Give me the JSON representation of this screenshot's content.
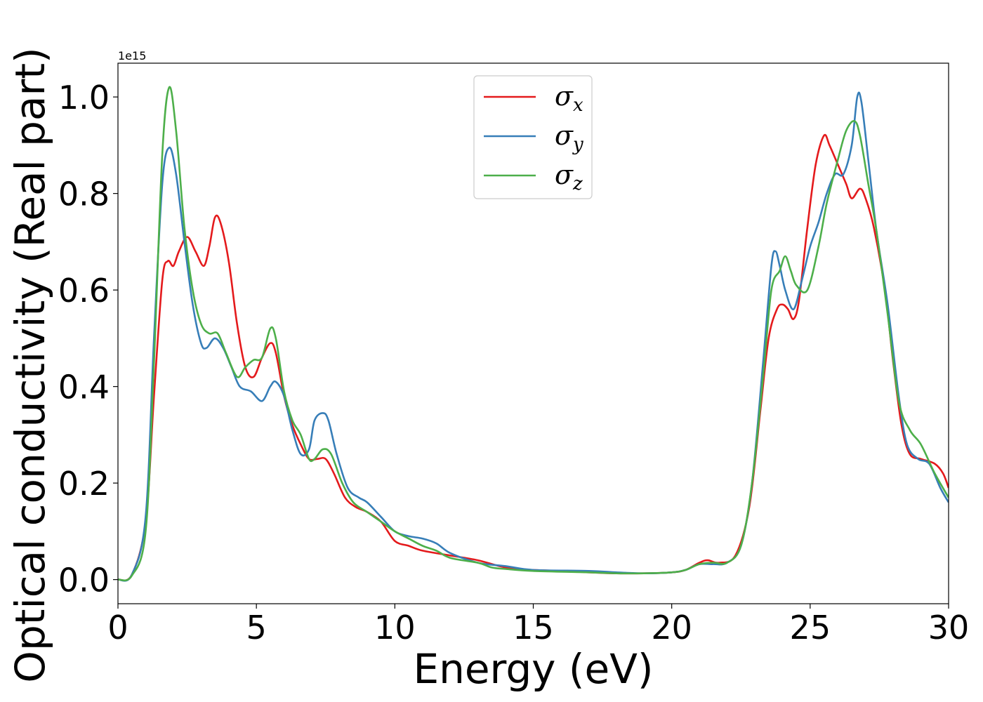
{
  "chart_data": {
    "type": "line",
    "xlabel": "Energy (eV)",
    "ylabel": "Optical conductivity (Real part)",
    "y_offset_label": "1e15",
    "xlim": [
      0,
      30
    ],
    "ylim": [
      -0.05,
      1.07
    ],
    "xticks": [
      0,
      5,
      10,
      15,
      20,
      25,
      30
    ],
    "xtick_labels": [
      "0",
      "5",
      "10",
      "15",
      "20",
      "25",
      "30"
    ],
    "yticks": [
      0.0,
      0.2,
      0.4,
      0.6,
      0.8,
      1.0
    ],
    "ytick_labels": [
      "0.0",
      "0.2",
      "0.4",
      "0.6",
      "0.8",
      "1.0"
    ],
    "grid": false,
    "legend_position": "top-center",
    "series": [
      {
        "name": "σx",
        "symbol": "σ",
        "subscript": "x",
        "color": "#e41a1c",
        "points": [
          [
            0,
            0
          ],
          [
            0.5,
            0.01
          ],
          [
            1.0,
            0.12
          ],
          [
            1.3,
            0.38
          ],
          [
            1.6,
            0.62
          ],
          [
            1.8,
            0.66
          ],
          [
            2.0,
            0.65
          ],
          [
            2.2,
            0.68
          ],
          [
            2.5,
            0.71
          ],
          [
            2.8,
            0.68
          ],
          [
            3.1,
            0.65
          ],
          [
            3.3,
            0.69
          ],
          [
            3.5,
            0.75
          ],
          [
            3.7,
            0.74
          ],
          [
            4.0,
            0.66
          ],
          [
            4.3,
            0.53
          ],
          [
            4.6,
            0.44
          ],
          [
            4.9,
            0.42
          ],
          [
            5.2,
            0.46
          ],
          [
            5.5,
            0.49
          ],
          [
            5.7,
            0.47
          ],
          [
            6.0,
            0.38
          ],
          [
            6.3,
            0.32
          ],
          [
            6.6,
            0.28
          ],
          [
            6.9,
            0.25
          ],
          [
            7.2,
            0.25
          ],
          [
            7.5,
            0.25
          ],
          [
            7.8,
            0.22
          ],
          [
            8.2,
            0.17
          ],
          [
            8.6,
            0.15
          ],
          [
            9.0,
            0.14
          ],
          [
            9.5,
            0.12
          ],
          [
            10.0,
            0.08
          ],
          [
            10.5,
            0.07
          ],
          [
            11.0,
            0.06
          ],
          [
            12.0,
            0.05
          ],
          [
            13.0,
            0.04
          ],
          [
            14.0,
            0.025
          ],
          [
            15.0,
            0.02
          ],
          [
            16.0,
            0.018
          ],
          [
            17.0,
            0.015
          ],
          [
            18.0,
            0.013
          ],
          [
            19.0,
            0.013
          ],
          [
            20.0,
            0.015
          ],
          [
            20.5,
            0.02
          ],
          [
            21.0,
            0.035
          ],
          [
            21.3,
            0.04
          ],
          [
            21.7,
            0.035
          ],
          [
            22.3,
            0.05
          ],
          [
            22.8,
            0.15
          ],
          [
            23.2,
            0.35
          ],
          [
            23.5,
            0.5
          ],
          [
            23.8,
            0.56
          ],
          [
            24.0,
            0.57
          ],
          [
            24.2,
            0.56
          ],
          [
            24.4,
            0.54
          ],
          [
            24.6,
            0.58
          ],
          [
            24.9,
            0.73
          ],
          [
            25.2,
            0.86
          ],
          [
            25.5,
            0.92
          ],
          [
            25.7,
            0.9
          ],
          [
            26.0,
            0.86
          ],
          [
            26.3,
            0.82
          ],
          [
            26.5,
            0.79
          ],
          [
            26.8,
            0.81
          ],
          [
            27.0,
            0.79
          ],
          [
            27.3,
            0.73
          ],
          [
            27.7,
            0.6
          ],
          [
            28.0,
            0.45
          ],
          [
            28.3,
            0.32
          ],
          [
            28.6,
            0.26
          ],
          [
            29.0,
            0.25
          ],
          [
            29.5,
            0.24
          ],
          [
            29.8,
            0.22
          ],
          [
            30.0,
            0.19
          ]
        ]
      },
      {
        "name": "σy",
        "symbol": "σ",
        "subscript": "y",
        "color": "#377eb8",
        "points": [
          [
            0,
            0
          ],
          [
            0.5,
            0.01
          ],
          [
            1.0,
            0.13
          ],
          [
            1.3,
            0.5
          ],
          [
            1.6,
            0.82
          ],
          [
            1.85,
            0.895
          ],
          [
            2.1,
            0.84
          ],
          [
            2.4,
            0.7
          ],
          [
            2.7,
            0.57
          ],
          [
            3.0,
            0.49
          ],
          [
            3.2,
            0.48
          ],
          [
            3.5,
            0.5
          ],
          [
            3.8,
            0.48
          ],
          [
            4.1,
            0.44
          ],
          [
            4.4,
            0.4
          ],
          [
            4.8,
            0.39
          ],
          [
            5.2,
            0.37
          ],
          [
            5.5,
            0.4
          ],
          [
            5.7,
            0.41
          ],
          [
            6.0,
            0.38
          ],
          [
            6.3,
            0.31
          ],
          [
            6.6,
            0.26
          ],
          [
            6.9,
            0.27
          ],
          [
            7.1,
            0.33
          ],
          [
            7.4,
            0.345
          ],
          [
            7.6,
            0.33
          ],
          [
            7.9,
            0.26
          ],
          [
            8.3,
            0.19
          ],
          [
            8.7,
            0.17
          ],
          [
            9.0,
            0.16
          ],
          [
            9.5,
            0.13
          ],
          [
            10.0,
            0.1
          ],
          [
            10.5,
            0.09
          ],
          [
            11.0,
            0.085
          ],
          [
            11.5,
            0.075
          ],
          [
            12.0,
            0.055
          ],
          [
            13.0,
            0.035
          ],
          [
            14.0,
            0.028
          ],
          [
            15.0,
            0.02
          ],
          [
            17.0,
            0.018
          ],
          [
            18.0,
            0.015
          ],
          [
            19.0,
            0.013
          ],
          [
            20.0,
            0.015
          ],
          [
            20.5,
            0.02
          ],
          [
            21.0,
            0.032
          ],
          [
            21.5,
            0.032
          ],
          [
            22.0,
            0.035
          ],
          [
            22.5,
            0.07
          ],
          [
            22.9,
            0.2
          ],
          [
            23.3,
            0.45
          ],
          [
            23.6,
            0.65
          ],
          [
            23.75,
            0.68
          ],
          [
            23.9,
            0.65
          ],
          [
            24.1,
            0.6
          ],
          [
            24.4,
            0.56
          ],
          [
            24.7,
            0.62
          ],
          [
            25.0,
            0.69
          ],
          [
            25.3,
            0.74
          ],
          [
            25.6,
            0.8
          ],
          [
            25.9,
            0.84
          ],
          [
            26.2,
            0.84
          ],
          [
            26.5,
            0.9
          ],
          [
            26.7,
            1.0
          ],
          [
            26.85,
            0.99
          ],
          [
            27.1,
            0.87
          ],
          [
            27.4,
            0.72
          ],
          [
            27.8,
            0.57
          ],
          [
            28.2,
            0.38
          ],
          [
            28.5,
            0.28
          ],
          [
            28.9,
            0.25
          ],
          [
            29.3,
            0.24
          ],
          [
            29.7,
            0.19
          ],
          [
            30.0,
            0.16
          ]
        ]
      },
      {
        "name": "σz",
        "symbol": "σ",
        "subscript": "z",
        "color": "#4daf4a",
        "points": [
          [
            0,
            0
          ],
          [
            0.5,
            0.008
          ],
          [
            1.0,
            0.1
          ],
          [
            1.3,
            0.45
          ],
          [
            1.6,
            0.88
          ],
          [
            1.85,
            1.02
          ],
          [
            2.1,
            0.93
          ],
          [
            2.4,
            0.73
          ],
          [
            2.7,
            0.6
          ],
          [
            3.0,
            0.53
          ],
          [
            3.3,
            0.51
          ],
          [
            3.6,
            0.51
          ],
          [
            3.9,
            0.47
          ],
          [
            4.3,
            0.42
          ],
          [
            4.6,
            0.44
          ],
          [
            4.9,
            0.455
          ],
          [
            5.2,
            0.46
          ],
          [
            5.5,
            0.52
          ],
          [
            5.7,
            0.5
          ],
          [
            6.0,
            0.39
          ],
          [
            6.3,
            0.33
          ],
          [
            6.6,
            0.3
          ],
          [
            6.9,
            0.25
          ],
          [
            7.1,
            0.25
          ],
          [
            7.4,
            0.27
          ],
          [
            7.7,
            0.26
          ],
          [
            8.1,
            0.2
          ],
          [
            8.5,
            0.16
          ],
          [
            9.0,
            0.14
          ],
          [
            9.5,
            0.12
          ],
          [
            10.0,
            0.1
          ],
          [
            10.5,
            0.085
          ],
          [
            11.0,
            0.07
          ],
          [
            11.5,
            0.06
          ],
          [
            12.0,
            0.045
          ],
          [
            13.0,
            0.035
          ],
          [
            13.5,
            0.025
          ],
          [
            14.0,
            0.022
          ],
          [
            15.0,
            0.018
          ],
          [
            17.0,
            0.015
          ],
          [
            18.0,
            0.013
          ],
          [
            19.0,
            0.013
          ],
          [
            20.0,
            0.015
          ],
          [
            20.5,
            0.02
          ],
          [
            21.0,
            0.032
          ],
          [
            21.5,
            0.035
          ],
          [
            22.0,
            0.035
          ],
          [
            22.5,
            0.07
          ],
          [
            22.9,
            0.2
          ],
          [
            23.3,
            0.42
          ],
          [
            23.6,
            0.6
          ],
          [
            23.9,
            0.64
          ],
          [
            24.1,
            0.67
          ],
          [
            24.3,
            0.64
          ],
          [
            24.5,
            0.61
          ],
          [
            24.9,
            0.6
          ],
          [
            25.3,
            0.69
          ],
          [
            25.6,
            0.78
          ],
          [
            26.0,
            0.87
          ],
          [
            26.3,
            0.93
          ],
          [
            26.6,
            0.95
          ],
          [
            26.8,
            0.92
          ],
          [
            27.1,
            0.82
          ],
          [
            27.4,
            0.72
          ],
          [
            27.8,
            0.55
          ],
          [
            28.2,
            0.37
          ],
          [
            28.6,
            0.31
          ],
          [
            29.0,
            0.28
          ],
          [
            29.5,
            0.22
          ],
          [
            30.0,
            0.17
          ]
        ]
      }
    ]
  }
}
